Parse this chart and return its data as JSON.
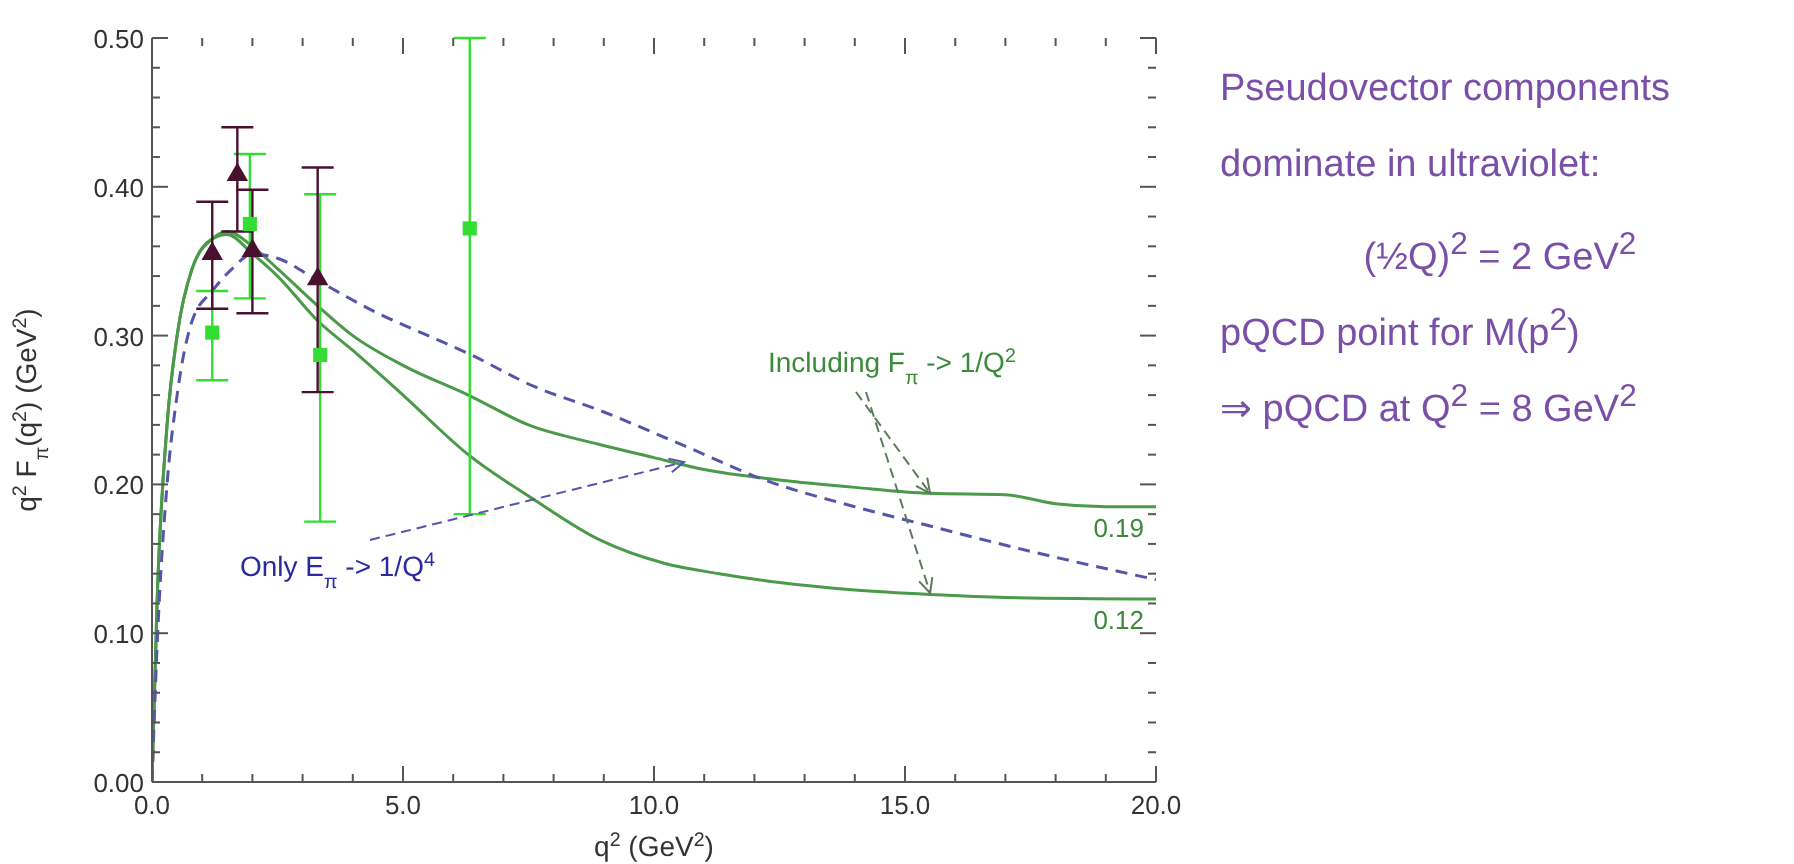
{
  "chart_data": {
    "type": "line",
    "xlabel": "q$^{2}$ (GeV$^{2}$)",
    "ylabel": "q$^{2}$ F$_{π}$(q$^{2}$) (GeV$^{2}$)",
    "xlim": [
      0,
      20
    ],
    "ylim": [
      0,
      0.5
    ],
    "xticks": [
      {
        "value": 0,
        "label": "0.0"
      },
      {
        "value": 1,
        "label": null
      },
      {
        "value": 2,
        "label": null
      },
      {
        "value": 3,
        "label": null
      },
      {
        "value": 4,
        "label": null
      },
      {
        "value": 5,
        "label": "5.0"
      },
      {
        "value": 6,
        "label": null
      },
      {
        "value": 7,
        "label": null
      },
      {
        "value": 8,
        "label": null
      },
      {
        "value": 9,
        "label": null
      },
      {
        "value": 10,
        "label": "10.0"
      },
      {
        "value": 11,
        "label": null
      },
      {
        "value": 12,
        "label": null
      },
      {
        "value": 13,
        "label": null
      },
      {
        "value": 14,
        "label": null
      },
      {
        "value": 15,
        "label": "15.0"
      },
      {
        "value": 16,
        "label": null
      },
      {
        "value": 17,
        "label": null
      },
      {
        "value": 18,
        "label": null
      },
      {
        "value": 19,
        "label": null
      },
      {
        "value": 20,
        "label": "20.0"
      }
    ],
    "yticks": [
      {
        "value": 0,
        "label": "0.00"
      },
      {
        "value": 0.02,
        "label": null
      },
      {
        "value": 0.04,
        "label": null
      },
      {
        "value": 0.06,
        "label": null
      },
      {
        "value": 0.08,
        "label": null
      },
      {
        "value": 0.1,
        "label": "0.10"
      },
      {
        "value": 0.12,
        "label": null
      },
      {
        "value": 0.14,
        "label": null
      },
      {
        "value": 0.16,
        "label": null
      },
      {
        "value": 0.18,
        "label": null
      },
      {
        "value": 0.2,
        "label": "0.20"
      },
      {
        "value": 0.22,
        "label": null
      },
      {
        "value": 0.24,
        "label": null
      },
      {
        "value": 0.26,
        "label": null
      },
      {
        "value": 0.28,
        "label": null
      },
      {
        "value": 0.3,
        "label": "0.30"
      },
      {
        "value": 0.32,
        "label": null
      },
      {
        "value": 0.34,
        "label": null
      },
      {
        "value": 0.36,
        "label": null
      },
      {
        "value": 0.38,
        "label": null
      },
      {
        "value": 0.4,
        "label": "0.40"
      },
      {
        "value": 0.42,
        "label": null
      },
      {
        "value": 0.44,
        "label": null
      },
      {
        "value": 0.46,
        "label": null
      },
      {
        "value": 0.48,
        "label": null
      },
      {
        "value": 0.5,
        "label": "0.50"
      }
    ],
    "series": [
      {
        "color": "#4a9a4a",
        "line_style": "solid",
        "marker": "none",
        "x": [
          0,
          0.1,
          0.3,
          0.5,
          0.8,
          1.2,
          1.5,
          2.0,
          2.5,
          3.3,
          4.0,
          5.0,
          6.3,
          7.5,
          8.9,
          10,
          11,
          12.5,
          14,
          15.5,
          17,
          18,
          19,
          20
        ],
        "values": [
          0,
          0.12,
          0.24,
          0.3,
          0.345,
          0.365,
          0.37,
          0.36,
          0.345,
          0.32,
          0.3,
          0.28,
          0.26,
          0.24,
          0.227,
          0.218,
          0.21,
          0.203,
          0.198,
          0.194,
          0.193,
          0.187,
          0.185,
          0.185
        ]
      },
      {
        "color": "#4a9a4a",
        "line_style": "solid",
        "marker": "none",
        "x": [
          0,
          0.1,
          0.3,
          0.5,
          0.8,
          1.2,
          1.5,
          2.0,
          2.5,
          3.3,
          4,
          5,
          6.3,
          7.6,
          8.9,
          10.2,
          11.3,
          12.5,
          14,
          15.5,
          17,
          20
        ],
        "values": [
          0,
          0.12,
          0.24,
          0.3,
          0.345,
          0.365,
          0.368,
          0.355,
          0.34,
          0.31,
          0.29,
          0.26,
          0.22,
          0.19,
          0.163,
          0.147,
          0.14,
          0.134,
          0.129,
          0.126,
          0.124,
          0.123
        ]
      },
      {
        "color": "#5555aa",
        "line_style": "dashed",
        "marker": "none",
        "x": [
          0,
          0.1,
          0.3,
          0.5,
          0.8,
          1.2,
          1.6,
          2.0,
          2.5,
          3.3,
          4.5,
          5.5,
          6.3,
          7.6,
          8.9,
          10.6,
          12.2,
          14,
          15.5,
          17.5,
          20
        ],
        "values": [
          0,
          0.09,
          0.2,
          0.26,
          0.31,
          0.33,
          0.345,
          0.355,
          0.352,
          0.337,
          0.315,
          0.3,
          0.288,
          0.266,
          0.25,
          0.226,
          0.203,
          0.185,
          0.172,
          0.155,
          0.136
        ]
      },
      {
        "type": "scatter",
        "color": "#33dd33",
        "marker": "square",
        "x": [
          1.2,
          1.95,
          3.35,
          6.33
        ],
        "values": [
          0.302,
          0.375,
          0.287,
          0.372
        ],
        "errors": [
          [
            0.27,
            0.33
          ],
          [
            0.325,
            0.422
          ],
          [
            0.175,
            0.395
          ],
          [
            0.18,
            0.5
          ]
        ]
      },
      {
        "type": "scatter",
        "color": "#4a1030",
        "marker": "triangle",
        "x": [
          1.2,
          1.7,
          2.0,
          3.3
        ],
        "values": [
          0.355,
          0.408,
          0.357,
          0.338
        ],
        "errors": [
          [
            0.318,
            0.39
          ],
          [
            0.37,
            0.44
          ],
          [
            0.315,
            0.398
          ],
          [
            0.262,
            0.413
          ]
        ]
      }
    ],
    "annotations": [
      {
        "text": "0.19",
        "x": 20,
        "y": 0.185
      },
      {
        "text": "0.12",
        "x": 20,
        "y": 0.123
      },
      {
        "text": "Including F$_{π}$ -> 1/Q$^{2}$",
        "x": 15.5,
        "y": 0.194
      },
      {
        "text": "Only E$_{π}$ -> 1/Q$^{4}$",
        "x": 10.6,
        "y": 0.215
      },
      "Pseudovector components dominate in ultraviolet:",
      "(½Q)$^{2}$ = 2 GeV$^{2}$",
      "pQCD point for M(p$^{2}$)",
      "⇒ pQCD at Q$^{2}$ = 8 GeV$^{2}$"
    ]
  }
}
